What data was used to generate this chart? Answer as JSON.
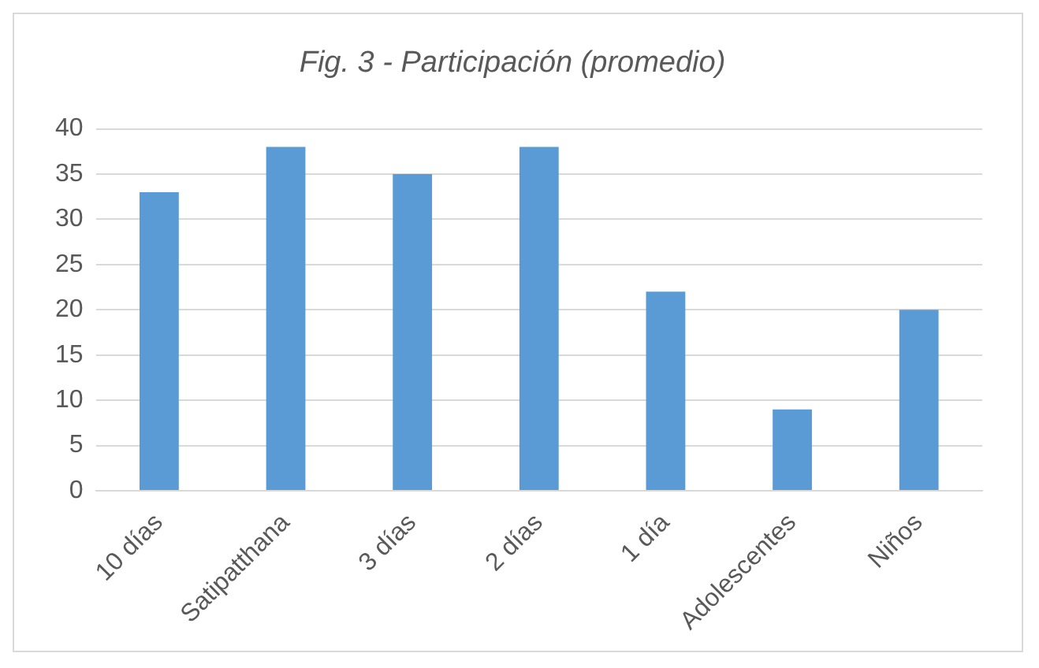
{
  "chart_data": {
    "type": "bar",
    "title": "Fig. 3 - Participación (promedio)",
    "categories": [
      "10 días",
      "Satipatthana",
      "3 días",
      "2 días",
      "1 día",
      "Adolescentes",
      "Niños"
    ],
    "values": [
      33,
      38,
      35,
      38,
      22,
      9,
      20
    ],
    "color": "#5b9bd5",
    "ylim": [
      0,
      40
    ],
    "yticks": [
      0,
      5,
      10,
      15,
      20,
      25,
      30,
      35,
      40
    ],
    "grid": "y",
    "legend": false
  }
}
